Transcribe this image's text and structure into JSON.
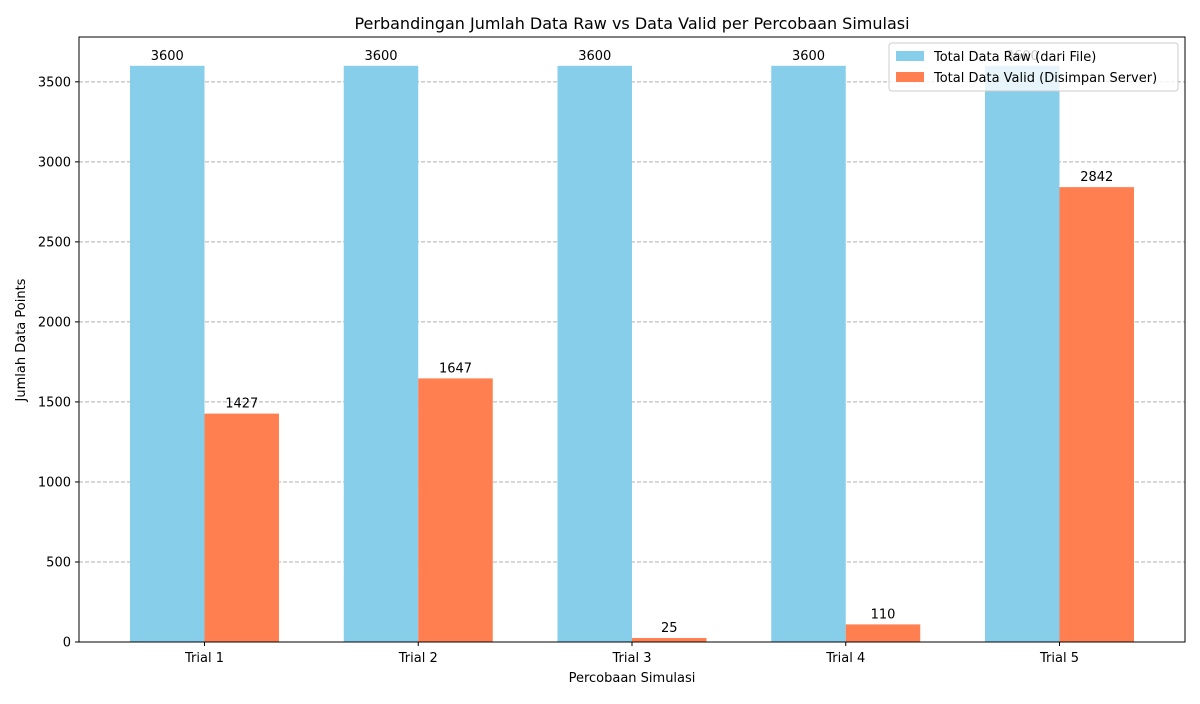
{
  "chart_data": {
    "type": "bar",
    "title": "Perbandingan Jumlah Data Raw vs Data Valid per Percobaan Simulasi",
    "xlabel": "Percobaan Simulasi",
    "ylabel": "Jumlah Data Points",
    "categories": [
      "Trial 1",
      "Trial 2",
      "Trial 3",
      "Trial 4",
      "Trial 5"
    ],
    "series": [
      {
        "name": "Total Data Raw (dari File)",
        "values": [
          3600,
          3600,
          3600,
          3600,
          3600
        ],
        "color": "#87ceeb"
      },
      {
        "name": "Total Data Valid (Disimpan Server)",
        "values": [
          1427,
          1647,
          25,
          110,
          2842
        ],
        "color": "#ff7f50"
      }
    ],
    "ylim": [
      0,
      3780
    ],
    "yticks": [
      0,
      500,
      1000,
      1500,
      2000,
      2500,
      3000,
      3500
    ],
    "grid": "y-dashed",
    "legend_position": "top-right",
    "data_labels": true
  }
}
